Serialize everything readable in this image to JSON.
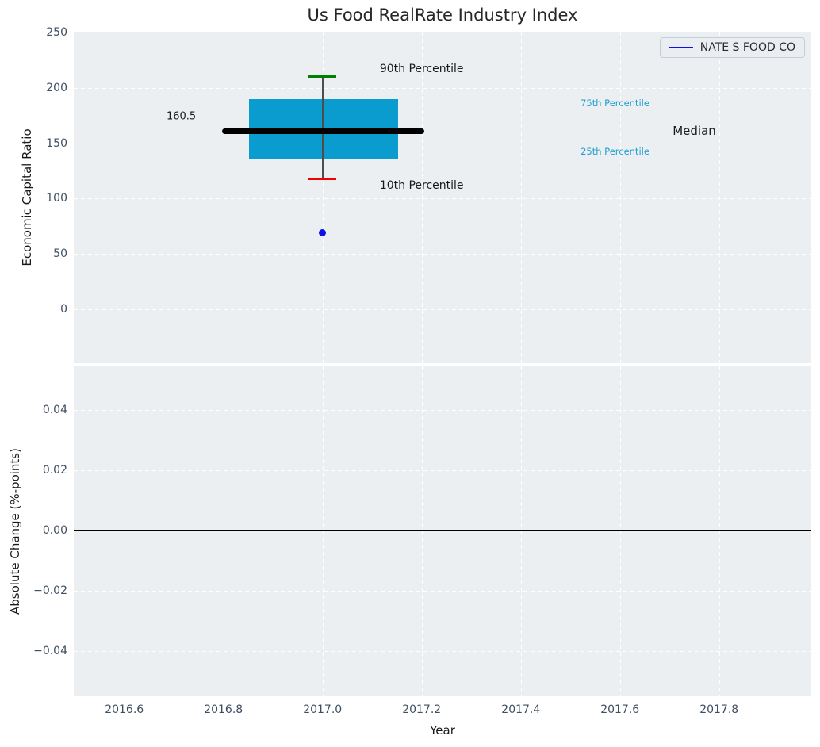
{
  "title": "Us Food RealRate Industry Index",
  "legend": {
    "label": "NATE S FOOD CO"
  },
  "colors": {
    "figure_bg": "#ffffff",
    "axes_bg": "#eceff1",
    "grid": "#ffffff",
    "box_fill": "#0a9bcf",
    "median_line": "#000000",
    "whisker": "#4d4d4d",
    "cap_90th": "#007f00",
    "cap_10th": "#f00000",
    "company_point": "#0f0fe8",
    "legend_line": "#0f0fe8",
    "tick_text": "#3f4f63",
    "percentile_label": "#1f9fd0",
    "zero_line": "#000000"
  },
  "chart_data": [
    {
      "type": "box",
      "title": "Us Food RealRate Industry Index",
      "ylabel": "Economic Capital Ratio",
      "xlim": [
        2016.498,
        2017.986
      ],
      "ylim": [
        -48.7,
        250.7
      ],
      "grid": "white dashed, on",
      "legend_position": "upper right",
      "xticks": [
        {
          "v": 2016.6,
          "label": "2016.6"
        },
        {
          "v": 2016.8,
          "label": "2016.8"
        },
        {
          "v": 2017.0,
          "label": "2017.0"
        },
        {
          "v": 2017.2,
          "label": "2017.2"
        },
        {
          "v": 2017.4,
          "label": "2017.4"
        },
        {
          "v": 2017.6,
          "label": "2017.6"
        },
        {
          "v": 2017.8,
          "label": "2017.8"
        }
      ],
      "yticks": [
        {
          "v": 0,
          "label": "0"
        },
        {
          "v": 50,
          "label": "50"
        },
        {
          "v": 100,
          "label": "100"
        },
        {
          "v": 150,
          "label": "150"
        },
        {
          "v": 200,
          "label": "200"
        },
        {
          "v": 250,
          "label": "250"
        }
      ],
      "box": {
        "x_center": 2017.0,
        "x_left": 2016.852,
        "x_right": 2017.152,
        "median_x_left": 2016.797,
        "median_x_right": 2017.206,
        "cap_x_left": 2016.972,
        "cap_x_right": 2017.028,
        "p10": 118,
        "p25": 135.5,
        "median": 160.5,
        "p75": 190,
        "p90": 210,
        "median_label": "160.5"
      },
      "company_point": {
        "name": "NATE S FOOD CO",
        "x": 2017.0,
        "y": 69
      },
      "annotations": [
        {
          "text": "90th Percentile",
          "x": 2017.2,
          "y": 217,
          "size": 14,
          "color": "#1a1a1a"
        },
        {
          "text": "10th Percentile",
          "x": 2017.2,
          "y": 112,
          "size": 14,
          "color": "#1a1a1a"
        },
        {
          "text": "75th Percentile",
          "x": 2017.59,
          "y": 186,
          "size": 11.5,
          "color": "#1f9fd0"
        },
        {
          "text": "25th Percentile",
          "x": 2017.59,
          "y": 142.5,
          "size": 11.5,
          "color": "#1f9fd0"
        },
        {
          "text": "Median",
          "x": 2017.75,
          "y": 161,
          "size": 15,
          "color": "#1a1a1a"
        },
        {
          "text": "160.5",
          "x": 2016.715,
          "y": 174,
          "size": 13,
          "color": "#1a1a1a"
        }
      ]
    },
    {
      "type": "line",
      "ylabel": "Absolute Change (%-points)",
      "xlabel": "Year",
      "xlim": [
        2016.498,
        2017.986
      ],
      "ylim": [
        -0.055,
        0.0545
      ],
      "grid": "white dashed, on",
      "zero_line": 0.0,
      "xticks": [
        {
          "v": 2016.6,
          "label": "2016.6"
        },
        {
          "v": 2016.8,
          "label": "2016.8"
        },
        {
          "v": 2017.0,
          "label": "2017.0"
        },
        {
          "v": 2017.2,
          "label": "2017.2"
        },
        {
          "v": 2017.4,
          "label": "2017.4"
        },
        {
          "v": 2017.6,
          "label": "2017.6"
        },
        {
          "v": 2017.8,
          "label": "2017.8"
        }
      ],
      "yticks": [
        {
          "v": 0.04,
          "label": "0.04"
        },
        {
          "v": 0.02,
          "label": "0.02"
        },
        {
          "v": 0.0,
          "label": "0.00"
        },
        {
          "v": -0.02,
          "label": "−0.02"
        },
        {
          "v": -0.04,
          "label": "−0.04"
        }
      ],
      "series": []
    }
  ]
}
